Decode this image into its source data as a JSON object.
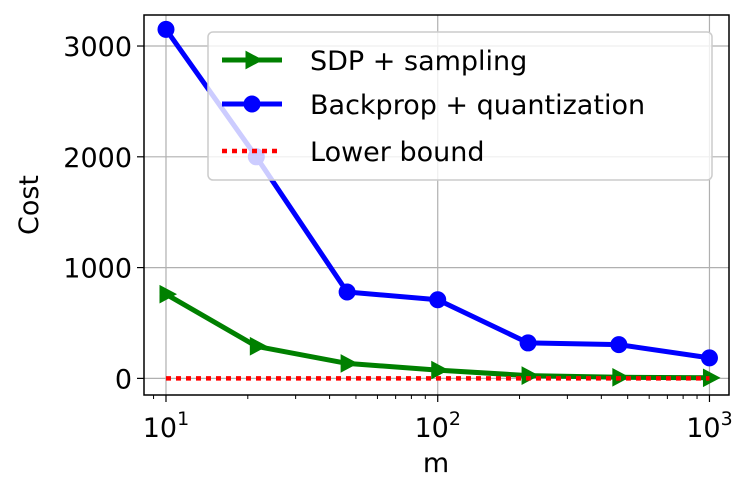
{
  "chart_data": {
    "type": "line",
    "x": [
      10,
      21.5,
      46.4,
      100,
      215,
      464,
      1000
    ],
    "xlabel": "m",
    "ylabel": "Cost",
    "xscale": "log",
    "xlim": [
      8.3,
      1180
    ],
    "ylim": [
      -150,
      3280
    ],
    "grid": true,
    "legend_position": "top-right",
    "x_ticks": [
      {
        "value": 10,
        "base": "10",
        "exp": "1"
      },
      {
        "value": 100,
        "base": "10",
        "exp": "2"
      },
      {
        "value": 1000,
        "base": "10",
        "exp": "3"
      }
    ],
    "y_ticks": [
      {
        "value": 0,
        "label": "0"
      },
      {
        "value": 1000,
        "label": "1000"
      },
      {
        "value": 2000,
        "label": "2000"
      },
      {
        "value": 3000,
        "label": "3000"
      }
    ],
    "series": [
      {
        "name": "SDP + sampling",
        "color": "#008000",
        "marker": "triangle-right",
        "line_style": "solid",
        "values": [
          760,
          290,
          135,
          75,
          25,
          10,
          5
        ]
      },
      {
        "name": "Backprop + quantization",
        "color": "#0000ff",
        "marker": "circle",
        "line_style": "solid",
        "values": [
          3150,
          2000,
          780,
          710,
          320,
          305,
          185
        ]
      },
      {
        "name": "Lower bound",
        "color": "#ff0000",
        "marker": "none",
        "line_style": "dotted",
        "values": [
          0,
          0,
          0,
          0,
          0,
          0,
          0
        ]
      }
    ]
  }
}
